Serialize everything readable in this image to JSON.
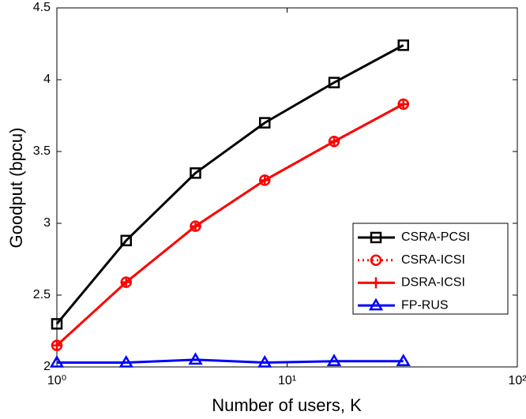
{
  "chart_data": {
    "type": "line",
    "xlabel": "Number of users, K",
    "ylabel": "Goodput (bpcu)",
    "x": [
      1,
      2,
      4,
      8,
      16,
      32
    ],
    "xscale": "log",
    "xlim": [
      1,
      100
    ],
    "xticks": [
      {
        "value": 1,
        "label": "10⁰"
      },
      {
        "value": 10,
        "label": "10¹"
      },
      {
        "value": 100,
        "label": "10²"
      }
    ],
    "ylim": [
      2,
      4.5
    ],
    "yticks": [
      2,
      2.5,
      3,
      3.5,
      4,
      4.5
    ],
    "legend": "lower right",
    "series": [
      {
        "name": "CSRA-PCSI",
        "color": "#000000",
        "marker": "square",
        "linestyle": "solid",
        "values": [
          2.3,
          2.88,
          3.35,
          3.7,
          3.98,
          4.24
        ]
      },
      {
        "name": "CSRA-ICSI",
        "color": "#ff0000",
        "marker": "circle",
        "linestyle": "dotted",
        "values": [
          2.15,
          2.59,
          2.98,
          3.3,
          3.57,
          3.83
        ]
      },
      {
        "name": "DSRA-ICSI",
        "color": "#ff0000",
        "marker": "plus",
        "linestyle": "solid",
        "values": [
          2.15,
          2.59,
          2.98,
          3.3,
          3.57,
          3.83
        ]
      },
      {
        "name": "FP-RUS",
        "color": "#0000ff",
        "marker": "triangle",
        "linestyle": "solid",
        "values": [
          2.03,
          2.03,
          2.05,
          2.03,
          2.04,
          2.04
        ]
      }
    ]
  }
}
